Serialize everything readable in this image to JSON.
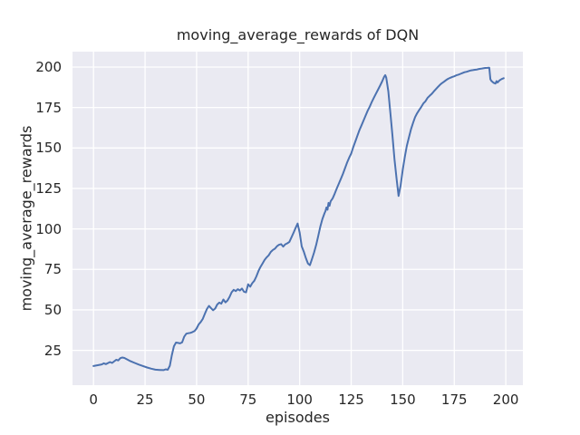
{
  "colors": {
    "figure_background": "#ffffff",
    "axes_background": "#eaeaf2",
    "gridline": "#ffffff",
    "line": "#4c72b0",
    "text": "#262626"
  },
  "chart_data": {
    "type": "line",
    "title": "moving_average_rewards of DQN",
    "xlabel": "episodes",
    "ylabel": "moving_average_rewards",
    "xlim": [
      -10.2,
      208.3
    ],
    "ylim": [
      3.5,
      209.5
    ],
    "xticks": [
      0,
      25,
      50,
      75,
      100,
      125,
      150,
      175,
      200
    ],
    "yticks": [
      25,
      50,
      75,
      100,
      125,
      150,
      175,
      200
    ],
    "grid": true,
    "legend_visible": false,
    "series": [
      {
        "name": "moving_average_rewards",
        "color": "#4c72b0",
        "points": [
          [
            0,
            15.3
          ],
          [
            2,
            15.8
          ],
          [
            4,
            16.3
          ],
          [
            5,
            17.0
          ],
          [
            6,
            16.5
          ],
          [
            8,
            17.8
          ],
          [
            9,
            17.2
          ],
          [
            11,
            19.2
          ],
          [
            12,
            18.8
          ],
          [
            13,
            20.2
          ],
          [
            14,
            20.6
          ],
          [
            15,
            20.3
          ],
          [
            16,
            19.6
          ],
          [
            18,
            18.3
          ],
          [
            20,
            17.2
          ],
          [
            22,
            16.2
          ],
          [
            24,
            15.3
          ],
          [
            26,
            14.4
          ],
          [
            28,
            13.7
          ],
          [
            30,
            13.1
          ],
          [
            32,
            12.9
          ],
          [
            34,
            12.8
          ],
          [
            35,
            13.3
          ],
          [
            36,
            13.0
          ],
          [
            37,
            15.5
          ],
          [
            38,
            22.0
          ],
          [
            39,
            27.5
          ],
          [
            40,
            29.8
          ],
          [
            41,
            29.6
          ],
          [
            42,
            29.3
          ],
          [
            43,
            30.0
          ],
          [
            44,
            33.5
          ],
          [
            45,
            35.3
          ],
          [
            46,
            35.6
          ],
          [
            47,
            35.8
          ],
          [
            48,
            36.3
          ],
          [
            49,
            37.0
          ],
          [
            50,
            38.5
          ],
          [
            51,
            41.0
          ],
          [
            52,
            42.5
          ],
          [
            53,
            44.5
          ],
          [
            54,
            47.5
          ],
          [
            55,
            50.5
          ],
          [
            56,
            52.5
          ],
          [
            57,
            51.0
          ],
          [
            58,
            49.8
          ],
          [
            59,
            50.8
          ],
          [
            60,
            53.3
          ],
          [
            61,
            54.5
          ],
          [
            62,
            53.8
          ],
          [
            63,
            56.4
          ],
          [
            64,
            54.6
          ],
          [
            65,
            55.8
          ],
          [
            66,
            58.0
          ],
          [
            67,
            60.9
          ],
          [
            68,
            62.4
          ],
          [
            69,
            61.6
          ],
          [
            70,
            62.8
          ],
          [
            71,
            62.0
          ],
          [
            72,
            63.2
          ],
          [
            73,
            61.2
          ],
          [
            74,
            60.8
          ],
          [
            75,
            65.8
          ],
          [
            76,
            64.3
          ],
          [
            77,
            66.5
          ],
          [
            78,
            68.0
          ],
          [
            79,
            70.7
          ],
          [
            80,
            74.0
          ],
          [
            81,
            76.5
          ],
          [
            82,
            78.7
          ],
          [
            83,
            80.9
          ],
          [
            84,
            82.5
          ],
          [
            85,
            83.7
          ],
          [
            86,
            85.8
          ],
          [
            87,
            87.0
          ],
          [
            88,
            87.8
          ],
          [
            89,
            89.3
          ],
          [
            90,
            90.2
          ],
          [
            91,
            90.6
          ],
          [
            92,
            89.1
          ],
          [
            93,
            90.5
          ],
          [
            94,
            91.1
          ],
          [
            95,
            92.0
          ],
          [
            96,
            94.8
          ],
          [
            97,
            97.5
          ],
          [
            98,
            100.5
          ],
          [
            99,
            103.3
          ],
          [
            100,
            97.6
          ],
          [
            101,
            89.3
          ],
          [
            102,
            86.0
          ],
          [
            103,
            82.0
          ],
          [
            104,
            78.7
          ],
          [
            105,
            77.6
          ],
          [
            106,
            81.5
          ],
          [
            107,
            85.5
          ],
          [
            108,
            90.2
          ],
          [
            109,
            95.5
          ],
          [
            110,
            101.3
          ],
          [
            111,
            106.0
          ],
          [
            112,
            109.6
          ],
          [
            112.5,
            111.0
          ],
          [
            113,
            113.3
          ],
          [
            113.5,
            111.9
          ],
          [
            114,
            116.1
          ],
          [
            114.5,
            114.3
          ],
          [
            115,
            117.0
          ],
          [
            116,
            118.9
          ],
          [
            117,
            121.7
          ],
          [
            118,
            125.0
          ],
          [
            119,
            128.0
          ],
          [
            120,
            131.0
          ],
          [
            121,
            134.0
          ],
          [
            122,
            137.5
          ],
          [
            123,
            141.0
          ],
          [
            124,
            144.0
          ],
          [
            125,
            146.5
          ],
          [
            126,
            150.5
          ],
          [
            127,
            154.0
          ],
          [
            128,
            157.5
          ],
          [
            129,
            161.0
          ],
          [
            130,
            164.0
          ],
          [
            131,
            167.0
          ],
          [
            132,
            170.0
          ],
          [
            133,
            173.0
          ],
          [
            134,
            175.5
          ],
          [
            135,
            178.5
          ],
          [
            136,
            181.0
          ],
          [
            137,
            183.5
          ],
          [
            138,
            186.0
          ],
          [
            139,
            188.5
          ],
          [
            140,
            191.0
          ],
          [
            141,
            194.0
          ],
          [
            141.5,
            195.0
          ],
          [
            142,
            193.5
          ],
          [
            143,
            185.0
          ],
          [
            144,
            172.0
          ],
          [
            145,
            158.0
          ],
          [
            146,
            143.0
          ],
          [
            147,
            131.0
          ],
          [
            148,
            120.4
          ],
          [
            149,
            127.0
          ],
          [
            150,
            136.5
          ],
          [
            151,
            144.5
          ],
          [
            152,
            151.3
          ],
          [
            153,
            156.5
          ],
          [
            154,
            161.5
          ],
          [
            155,
            165.5
          ],
          [
            156,
            169.0
          ],
          [
            157,
            171.5
          ],
          [
            158,
            173.5
          ],
          [
            159,
            175.4
          ],
          [
            160,
            177.5
          ],
          [
            161,
            178.8
          ],
          [
            162,
            180.9
          ],
          [
            163,
            182.2
          ],
          [
            164,
            183.3
          ],
          [
            165,
            184.8
          ],
          [
            166,
            186.2
          ],
          [
            167,
            187.6
          ],
          [
            168,
            188.9
          ],
          [
            169,
            190.0
          ],
          [
            170,
            190.9
          ],
          [
            171,
            191.9
          ],
          [
            172,
            192.7
          ],
          [
            173,
            193.3
          ],
          [
            174,
            193.9
          ],
          [
            175,
            194.3
          ],
          [
            176,
            194.9
          ],
          [
            177,
            195.3
          ],
          [
            178,
            195.8
          ],
          [
            179,
            196.3
          ],
          [
            180,
            196.8
          ],
          [
            181,
            197.1
          ],
          [
            182,
            197.5
          ],
          [
            183,
            197.9
          ],
          [
            184,
            198.1
          ],
          [
            185,
            198.3
          ],
          [
            186,
            198.5
          ],
          [
            187,
            198.8
          ],
          [
            188,
            199.0
          ],
          [
            189,
            199.2
          ],
          [
            190,
            199.4
          ],
          [
            191,
            199.5
          ],
          [
            192,
            199.6
          ],
          [
            192.5,
            192.5
          ],
          [
            193,
            191.4
          ],
          [
            194,
            190.3
          ],
          [
            195,
            189.8
          ],
          [
            195.5,
            191.3
          ],
          [
            196,
            190.4
          ],
          [
            197,
            191.8
          ],
          [
            198,
            192.6
          ],
          [
            199,
            193.1
          ]
        ]
      }
    ]
  }
}
